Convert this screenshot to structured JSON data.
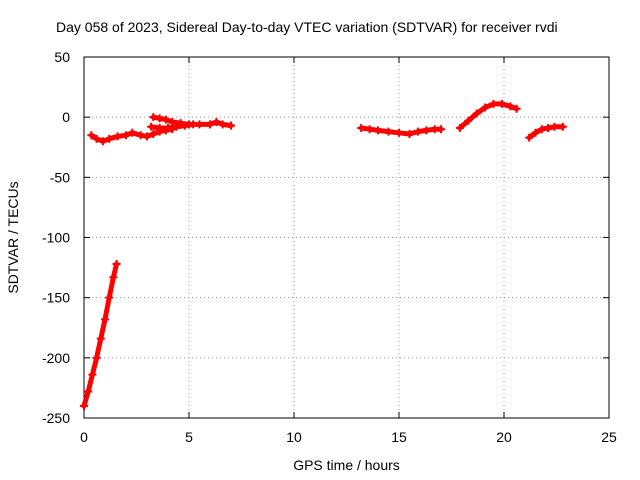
{
  "chart_data": {
    "type": "scatter",
    "title": "Day 058 of 2023, Sidereal Day-to-day VTEC variation (SDTVAR) for receiver rvdi",
    "xlabel": "GPS time / hours",
    "ylabel": "SDTVAR / TECUs",
    "xlim": [
      0,
      25
    ],
    "ylim": [
      -250,
      50
    ],
    "x_ticks": [
      0,
      5,
      10,
      15,
      20,
      25
    ],
    "y_ticks": [
      -250,
      -200,
      -150,
      -100,
      -50,
      0,
      50
    ],
    "x_tick_labels": [
      "0",
      "5",
      "10",
      "15",
      "20",
      "25"
    ],
    "y_tick_labels": [
      "-250",
      "-200",
      "-150",
      "-100",
      "-50",
      "0",
      "50"
    ],
    "grid": true,
    "legend": "none",
    "color": "#ff0000",
    "series": [
      {
        "points": [
          [
            0.0,
            -240
          ],
          [
            0.2,
            -228
          ],
          [
            0.4,
            -214
          ],
          [
            0.6,
            -200
          ],
          [
            0.8,
            -184
          ],
          [
            1.0,
            -168
          ],
          [
            1.2,
            -150
          ],
          [
            1.4,
            -133
          ],
          [
            1.55,
            -122
          ]
        ]
      },
      {
        "points": [
          [
            0.35,
            -15
          ],
          [
            0.6,
            -18
          ],
          [
            0.9,
            -20
          ],
          [
            1.2,
            -18
          ],
          [
            1.6,
            -16
          ],
          [
            2.0,
            -15
          ],
          [
            2.3,
            -13
          ],
          [
            2.7,
            -15
          ],
          [
            3.0,
            -16
          ],
          [
            3.3,
            -14
          ],
          [
            3.6,
            -12
          ],
          [
            3.9,
            -11
          ],
          [
            4.2,
            -10
          ]
        ]
      },
      {
        "points": [
          [
            3.3,
            0
          ],
          [
            3.6,
            -1
          ],
          [
            3.9,
            -2
          ],
          [
            4.2,
            -4
          ],
          [
            4.6,
            -5
          ],
          [
            5.0,
            -6
          ],
          [
            5.5,
            -6
          ],
          [
            6.0,
            -6
          ],
          [
            6.3,
            -4
          ],
          [
            6.6,
            -6
          ],
          [
            7.0,
            -7
          ]
        ]
      },
      {
        "points": [
          [
            3.2,
            -8
          ],
          [
            3.6,
            -9
          ],
          [
            4.0,
            -9
          ],
          [
            4.4,
            -8
          ],
          [
            4.8,
            -7
          ],
          [
            5.2,
            -6
          ]
        ]
      },
      {
        "points": [
          [
            13.2,
            -9
          ],
          [
            13.6,
            -10
          ],
          [
            14.0,
            -11
          ],
          [
            14.5,
            -12
          ],
          [
            15.0,
            -13
          ],
          [
            15.5,
            -14
          ],
          [
            15.9,
            -12
          ],
          [
            16.3,
            -11
          ],
          [
            16.7,
            -10
          ],
          [
            17.0,
            -10
          ]
        ]
      },
      {
        "points": [
          [
            17.9,
            -9
          ],
          [
            18.3,
            -3
          ],
          [
            18.7,
            3
          ],
          [
            19.1,
            8
          ],
          [
            19.5,
            11
          ],
          [
            19.9,
            11
          ],
          [
            20.3,
            9
          ],
          [
            20.6,
            7
          ]
        ]
      },
      {
        "points": [
          [
            21.2,
            -17
          ],
          [
            21.5,
            -13
          ],
          [
            21.8,
            -10
          ],
          [
            22.1,
            -9
          ],
          [
            22.4,
            -8
          ],
          [
            22.8,
            -8
          ]
        ]
      }
    ]
  }
}
